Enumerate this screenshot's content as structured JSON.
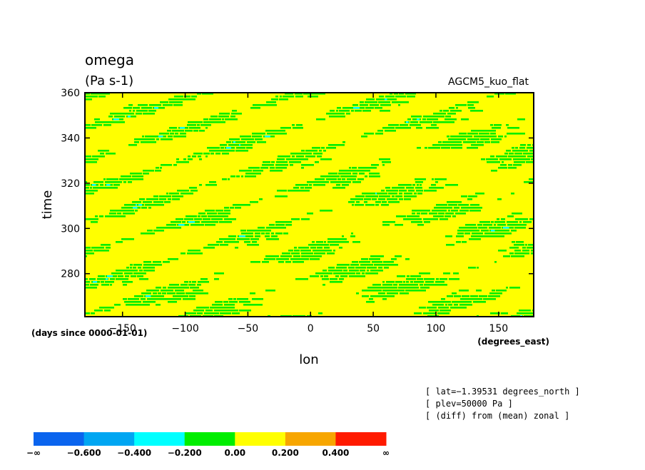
{
  "chart_data": {
    "type": "heatmap",
    "title": "omega",
    "units": "(Pa s-1)",
    "experiment": "AGCM5_kuo_flat",
    "xlabel": "lon",
    "ylabel": "time",
    "x_unit": "(degrees_east)",
    "y_unit": "(days since 0000-01-01)",
    "xlim": [
      -180,
      178
    ],
    "ylim": [
      261,
      360
    ],
    "x_ticks": [
      -150,
      -100,
      -50,
      0,
      50,
      100,
      150
    ],
    "x_tick_labels": [
      "−150",
      "−100",
      "−50",
      "0",
      "50",
      "100",
      "150"
    ],
    "y_ticks": [
      280,
      300,
      320,
      340,
      360
    ],
    "y_tick_labels": [
      "280",
      "300",
      "320",
      "340",
      "360"
    ],
    "notes": [
      "[ lat=−1.39531 degrees_north ]",
      "[ plev=50000 Pa ]",
      "[ (diff) from (mean) zonal ]"
    ],
    "colorbar": {
      "labels": [
        "−∞",
        "−0.600",
        "−0.400",
        "−0.200",
        "0.00",
        "0.200",
        "0.400",
        "∞"
      ],
      "bounds": [
        null,
        -0.6,
        -0.4,
        -0.2,
        0.0,
        0.2,
        0.4,
        null
      ],
      "colors": [
        "#0a64ee",
        "#00a6f2",
        "#00ffff",
        "#00ee00",
        "#ffff00",
        "#f7a600",
        "#ff1a00"
      ]
    },
    "field_description_values": {
      "dominant_range": [
        0.0,
        0.2
      ],
      "common_range": [
        -0.2,
        0.0
      ],
      "rare_range": [
        -0.4,
        -0.2
      ],
      "pattern": "eastward-propagating diagonal streaks (westward tilt with time)"
    }
  }
}
